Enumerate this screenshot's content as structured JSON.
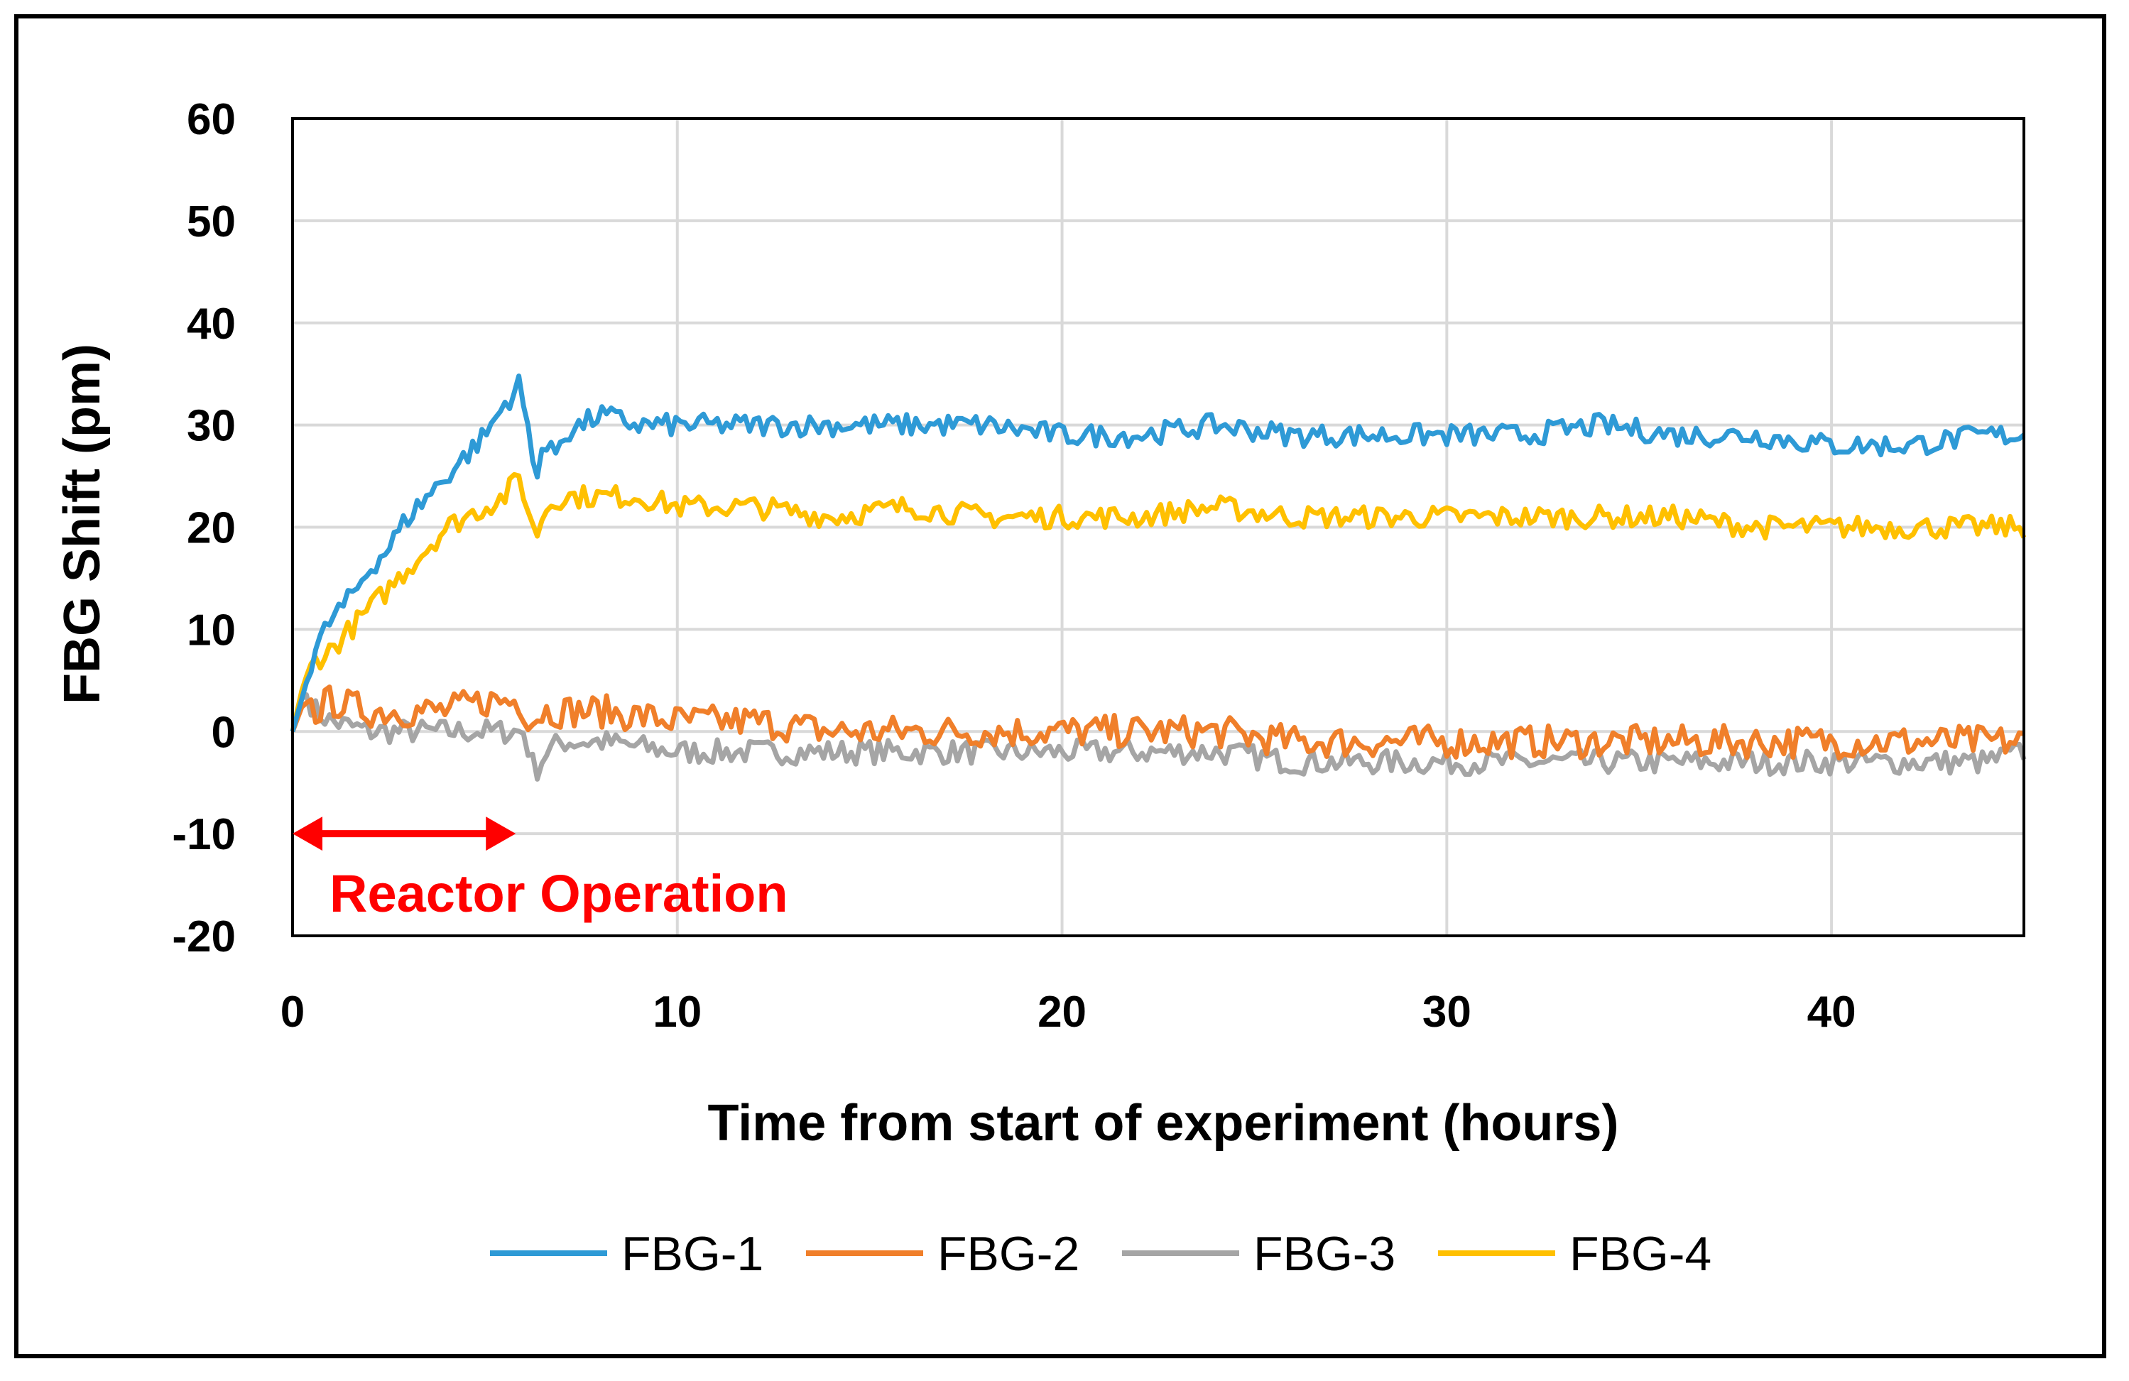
{
  "chart_data": {
    "type": "line",
    "xlabel": "Time from start of experiment (hours)",
    "ylabel": "FBG Shift (pm)",
    "xlim": [
      0,
      45
    ],
    "ylim": [
      -20,
      60
    ],
    "x_ticks": [
      "0",
      "10",
      "20",
      "30",
      "40"
    ],
    "y_ticks": [
      "-20",
      "-10",
      "0",
      "10",
      "20",
      "30",
      "40",
      "50",
      "60"
    ],
    "grid": true,
    "legend_position": "bottom",
    "annotation": {
      "text": "Reactor Operation",
      "x_start": 0,
      "x_end": 5.8,
      "y": -10,
      "color": "#ff0000"
    },
    "series": [
      {
        "name": "FBG-1",
        "color": "#2e9ad6",
        "points": [
          [
            0,
            0
          ],
          [
            0.3,
            4
          ],
          [
            0.6,
            8
          ],
          [
            1,
            11
          ],
          [
            1.5,
            13
          ],
          [
            2,
            16
          ],
          [
            2.5,
            18
          ],
          [
            3,
            21
          ],
          [
            3.5,
            23
          ],
          [
            4,
            25
          ],
          [
            4.5,
            27
          ],
          [
            5,
            29
          ],
          [
            5.5,
            32
          ],
          [
            5.9,
            34
          ],
          [
            6.1,
            30
          ],
          [
            6.3,
            25
          ],
          [
            6.5,
            28
          ],
          [
            6.8,
            27
          ],
          [
            7,
            29
          ],
          [
            7.5,
            30
          ],
          [
            8,
            31
          ],
          [
            9,
            30
          ],
          [
            10,
            30
          ],
          [
            12,
            30
          ],
          [
            14,
            30
          ],
          [
            16,
            30
          ],
          [
            18,
            30
          ],
          [
            20,
            29
          ],
          [
            22,
            29
          ],
          [
            24,
            30
          ],
          [
            26,
            29
          ],
          [
            28,
            29
          ],
          [
            30,
            29
          ],
          [
            32,
            29
          ],
          [
            34,
            30
          ],
          [
            36,
            29
          ],
          [
            38,
            29
          ],
          [
            40,
            28
          ],
          [
            42,
            28
          ],
          [
            44,
            29
          ],
          [
            45,
            29
          ]
        ]
      },
      {
        "name": "FBG-2",
        "color": "#f07f2a",
        "points": [
          [
            0,
            0
          ],
          [
            0.3,
            3
          ],
          [
            0.6,
            2
          ],
          [
            1,
            3
          ],
          [
            2,
            2
          ],
          [
            3,
            2
          ],
          [
            4,
            2
          ],
          [
            5,
            3
          ],
          [
            5.9,
            3
          ],
          [
            6.2,
            1
          ],
          [
            6.5,
            2
          ],
          [
            7,
            2
          ],
          [
            8,
            2
          ],
          [
            10,
            1
          ],
          [
            12,
            1
          ],
          [
            14,
            0
          ],
          [
            16,
            0
          ],
          [
            18,
            0
          ],
          [
            20,
            0
          ],
          [
            22,
            0
          ],
          [
            24,
            0
          ],
          [
            26,
            -1
          ],
          [
            28,
            -1
          ],
          [
            30,
            -1
          ],
          [
            32,
            -1
          ],
          [
            34,
            -1
          ],
          [
            36,
            -1
          ],
          [
            38,
            -1
          ],
          [
            40,
            -1
          ],
          [
            42,
            -1
          ],
          [
            44,
            -1
          ],
          [
            45,
            -1
          ]
        ]
      },
      {
        "name": "FBG-3",
        "color": "#a5a5a5",
        "points": [
          [
            0,
            0
          ],
          [
            0.3,
            4
          ],
          [
            0.6,
            2
          ],
          [
            1,
            1
          ],
          [
            2,
            0
          ],
          [
            3,
            0
          ],
          [
            4,
            0
          ],
          [
            5,
            0
          ],
          [
            6,
            0
          ],
          [
            6.3,
            -4
          ],
          [
            6.6,
            -2
          ],
          [
            7,
            -1
          ],
          [
            8,
            -1
          ],
          [
            10,
            -2
          ],
          [
            12,
            -2
          ],
          [
            14,
            -2
          ],
          [
            16,
            -2
          ],
          [
            18,
            -2
          ],
          [
            20,
            -2
          ],
          [
            22,
            -2
          ],
          [
            24,
            -2
          ],
          [
            26,
            -3
          ],
          [
            28,
            -3
          ],
          [
            30,
            -3
          ],
          [
            32,
            -3
          ],
          [
            34,
            -3
          ],
          [
            36,
            -3
          ],
          [
            38,
            -3
          ],
          [
            40,
            -3
          ],
          [
            42,
            -3
          ],
          [
            44,
            -3
          ],
          [
            45,
            -2
          ]
        ]
      },
      {
        "name": "FBG-4",
        "color": "#ffc000",
        "points": [
          [
            0,
            0
          ],
          [
            0.3,
            5
          ],
          [
            0.6,
            7
          ],
          [
            1,
            8
          ],
          [
            1.5,
            10
          ],
          [
            2,
            12
          ],
          [
            2.5,
            14
          ],
          [
            3,
            16
          ],
          [
            3.5,
            18
          ],
          [
            4,
            20
          ],
          [
            4.5,
            21
          ],
          [
            5,
            22
          ],
          [
            5.5,
            23
          ],
          [
            5.9,
            25
          ],
          [
            6.1,
            22
          ],
          [
            6.3,
            19
          ],
          [
            6.6,
            22
          ],
          [
            7,
            23
          ],
          [
            8,
            23
          ],
          [
            9,
            23
          ],
          [
            10,
            22
          ],
          [
            12,
            22
          ],
          [
            14,
            21
          ],
          [
            16,
            22
          ],
          [
            18,
            21
          ],
          [
            20,
            21
          ],
          [
            22,
            21
          ],
          [
            24,
            22
          ],
          [
            26,
            21
          ],
          [
            28,
            21
          ],
          [
            30,
            21
          ],
          [
            32,
            21
          ],
          [
            34,
            21
          ],
          [
            36,
            21
          ],
          [
            38,
            20
          ],
          [
            40,
            20
          ],
          [
            42,
            20
          ],
          [
            44,
            20
          ],
          [
            45,
            20
          ]
        ]
      }
    ]
  }
}
